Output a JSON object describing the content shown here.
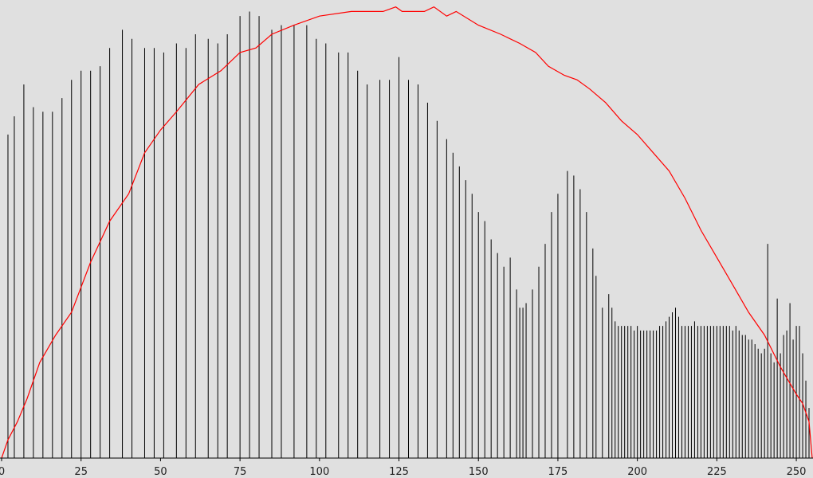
{
  "chart_data": {
    "type": "histogram",
    "xlim": [
      0,
      255
    ],
    "ylim": [
      0,
      100
    ],
    "xticks": [
      0,
      25,
      50,
      75,
      100,
      125,
      150,
      175,
      200,
      225,
      250
    ],
    "color": "#000000",
    "x": [
      2,
      4,
      7,
      10,
      13,
      16,
      19,
      22,
      25,
      28,
      31,
      34,
      38,
      41,
      45,
      48,
      51,
      55,
      58,
      61,
      65,
      68,
      71,
      75,
      78,
      81,
      85,
      88,
      92,
      96,
      99,
      102,
      106,
      109,
      112,
      115,
      119,
      122,
      125,
      128,
      131,
      134,
      137,
      140,
      142,
      144,
      146,
      148,
      150,
      152,
      154,
      156,
      158,
      160,
      162,
      163,
      164,
      165,
      167,
      169,
      171,
      173,
      175,
      178,
      180,
      182,
      184,
      186,
      187,
      189,
      191,
      192,
      193,
      194,
      195,
      196,
      197,
      198,
      199,
      200,
      201,
      202,
      203,
      204,
      205,
      206,
      207,
      208,
      209,
      210,
      211,
      212,
      213,
      214,
      215,
      216,
      217,
      218,
      219,
      220,
      221,
      222,
      223,
      224,
      225,
      226,
      227,
      228,
      229,
      230,
      231,
      232,
      233,
      234,
      235,
      236,
      237,
      238,
      239,
      240,
      241,
      242,
      243,
      244,
      245,
      246,
      247,
      248,
      249,
      250,
      251,
      252,
      253,
      254
    ],
    "values": [
      71,
      75,
      82,
      77,
      76,
      76,
      79,
      83,
      85,
      85,
      86,
      90,
      94,
      92,
      90,
      90,
      89,
      91,
      90,
      93,
      92,
      91,
      93,
      97,
      98,
      97,
      94,
      95,
      95,
      95,
      92,
      91,
      89,
      89,
      85,
      82,
      83,
      83,
      88,
      83,
      82,
      78,
      74,
      70,
      67,
      64,
      61,
      58,
      54,
      52,
      48,
      45,
      42,
      44,
      37,
      33,
      33,
      34,
      37,
      42,
      47,
      54,
      58,
      63,
      62,
      59,
      54,
      46,
      40,
      33,
      36,
      33,
      30,
      29,
      29,
      29,
      29,
      29,
      28,
      29,
      28,
      28,
      28,
      28,
      28,
      28,
      29,
      29,
      30,
      31,
      32,
      33,
      31,
      29,
      29,
      29,
      29,
      30,
      29,
      29,
      29,
      29,
      29,
      29,
      29,
      29,
      29,
      29,
      29,
      28,
      29,
      28,
      27,
      27,
      26,
      26,
      25,
      24,
      23,
      24,
      47,
      23,
      21,
      35,
      23,
      27,
      28,
      34,
      26,
      29,
      29,
      23,
      17,
      11
    ],
    "line": {
      "color": "#ff0000",
      "x": [
        0,
        2,
        5,
        8,
        12,
        17,
        22,
        28,
        34,
        40,
        45,
        50,
        55,
        62,
        69,
        75,
        80,
        85,
        92,
        100,
        110,
        120,
        124,
        126,
        133,
        136,
        140,
        143,
        150,
        157,
        163,
        168,
        172,
        177,
        181,
        185,
        190,
        195,
        200,
        205,
        210,
        215,
        220,
        225,
        230,
        235,
        240,
        245,
        250,
        252,
        254,
        255
      ],
      "values": [
        0,
        4,
        8,
        13,
        21,
        27,
        32,
        43,
        52,
        58,
        67,
        72,
        76,
        82,
        85,
        89,
        90,
        93,
        95,
        97,
        98,
        98,
        99,
        98,
        98,
        99,
        97,
        98,
        95,
        93,
        91,
        89,
        86,
        84,
        83,
        81,
        78,
        74,
        71,
        67,
        63,
        57,
        50,
        44,
        38,
        32,
        27,
        20,
        14,
        12,
        8,
        0
      ]
    }
  }
}
